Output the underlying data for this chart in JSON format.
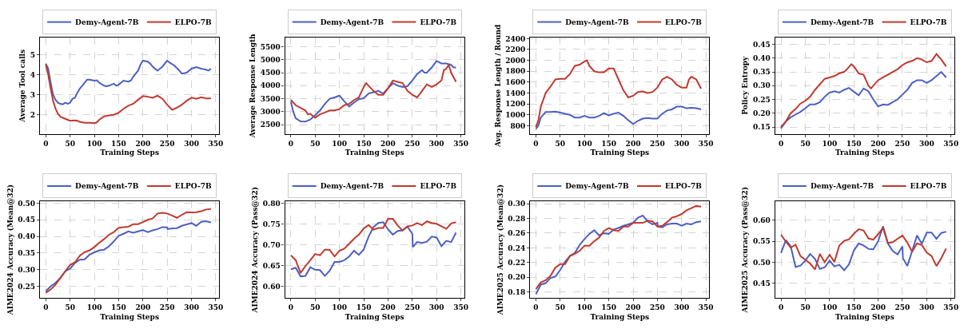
{
  "chart_data": [
    {
      "type": "line",
      "xlabel": "Training Steps",
      "ylabel": "Average Tool calls",
      "xlim": [
        -12,
        357
      ],
      "xticks": [
        0,
        50,
        100,
        150,
        200,
        250,
        300,
        350
      ],
      "ylim": [
        1.05,
        5.85
      ],
      "yticks": [
        2,
        3,
        4,
        5
      ],
      "grid": true,
      "legend": "top",
      "series": [
        {
          "name": "Demy-Agent-7B",
          "color": "#4c5fc4",
          "x": [
            0,
            5,
            10,
            15,
            20,
            25,
            30,
            35,
            40,
            45,
            50,
            55,
            60,
            65,
            70,
            80,
            85,
            90,
            100,
            105,
            110,
            120,
            125,
            130,
            140,
            145,
            150,
            160,
            170,
            175,
            180,
            190,
            195,
            200,
            210,
            215,
            220,
            230,
            240,
            250,
            255,
            265,
            275,
            280,
            290,
            300,
            310,
            320,
            330,
            335,
            340
          ],
          "values": [
            4.55,
            4.3,
            3.6,
            3.0,
            2.75,
            2.6,
            2.55,
            2.52,
            2.6,
            2.55,
            2.6,
            2.8,
            2.85,
            3.1,
            3.3,
            3.6,
            3.75,
            3.75,
            3.7,
            3.72,
            3.6,
            3.45,
            3.42,
            3.45,
            3.55,
            3.45,
            3.5,
            3.7,
            3.65,
            3.7,
            3.9,
            4.2,
            4.5,
            4.7,
            4.65,
            4.55,
            4.4,
            4.2,
            4.4,
            4.7,
            4.6,
            4.45,
            4.2,
            4.05,
            4.1,
            4.3,
            4.38,
            4.3,
            4.25,
            4.2,
            4.3
          ]
        },
        {
          "name": "ELPO-7B",
          "color": "#c0392f",
          "x": [
            0,
            5,
            10,
            15,
            20,
            25,
            30,
            40,
            50,
            60,
            65,
            70,
            80,
            90,
            100,
            105,
            110,
            120,
            130,
            140,
            150,
            160,
            170,
            180,
            190,
            200,
            210,
            220,
            230,
            240,
            250,
            260,
            270,
            280,
            290,
            300,
            310,
            320,
            330,
            340
          ],
          "values": [
            4.5,
            4.0,
            3.3,
            2.7,
            2.3,
            2.05,
            1.9,
            1.8,
            1.7,
            1.72,
            1.7,
            1.65,
            1.6,
            1.6,
            1.58,
            1.62,
            1.75,
            1.92,
            1.97,
            2.0,
            2.1,
            2.3,
            2.45,
            2.55,
            2.75,
            2.93,
            2.9,
            2.85,
            2.95,
            2.8,
            2.5,
            2.25,
            2.35,
            2.5,
            2.7,
            2.85,
            2.8,
            2.87,
            2.82,
            2.82
          ]
        }
      ]
    },
    {
      "type": "line",
      "xlabel": "Training Steps",
      "ylabel": "Average Response Length",
      "xlim": [
        -12,
        357
      ],
      "xticks": [
        0,
        50,
        100,
        150,
        200,
        250,
        300,
        350
      ],
      "ylim": [
        2150,
        5850
      ],
      "yticks": [
        2500,
        3000,
        3500,
        4000,
        4500,
        5000,
        5500
      ],
      "grid": true,
      "legend": "top",
      "series": [
        {
          "name": "Demy-Agent-7B",
          "color": "#4c5fc4",
          "x": [
            0,
            5,
            10,
            20,
            30,
            40,
            50,
            60,
            70,
            80,
            90,
            100,
            110,
            120,
            130,
            140,
            150,
            160,
            170,
            180,
            190,
            200,
            210,
            220,
            230,
            240,
            250,
            260,
            270,
            275,
            280,
            290,
            300,
            310,
            320,
            330,
            335,
            340
          ],
          "values": [
            3380,
            3000,
            2750,
            2630,
            2620,
            2700,
            2870,
            3050,
            3300,
            3500,
            3550,
            3620,
            3400,
            3200,
            3350,
            3480,
            3520,
            3700,
            3750,
            3800,
            3700,
            3900,
            4100,
            4000,
            3950,
            3980,
            4200,
            4450,
            4600,
            4500,
            4500,
            4700,
            4950,
            4850,
            4850,
            4800,
            4700,
            4700
          ]
        },
        {
          "name": "ELPO-7B",
          "color": "#c0392f",
          "x": [
            0,
            10,
            20,
            30,
            35,
            40,
            50,
            60,
            70,
            80,
            90,
            100,
            110,
            120,
            130,
            140,
            150,
            155,
            160,
            170,
            180,
            190,
            200,
            210,
            220,
            230,
            240,
            250,
            260,
            270,
            280,
            290,
            300,
            310,
            315,
            320,
            325,
            330,
            340
          ],
          "values": [
            3450,
            3250,
            3150,
            3050,
            2900,
            2920,
            2770,
            2900,
            2970,
            3050,
            3050,
            3100,
            3250,
            3300,
            3450,
            3550,
            3950,
            4100,
            4000,
            3800,
            3650,
            3650,
            3900,
            4200,
            4150,
            4100,
            3800,
            3650,
            3550,
            3800,
            4050,
            3950,
            4050,
            4200,
            4600,
            4650,
            4800,
            4500,
            4150
          ]
        }
      ]
    },
    {
      "type": "line",
      "xlabel": "Training Steps",
      "ylabel": "Avg. Response Length / Round",
      "xlim": [
        -12,
        357
      ],
      "xticks": [
        0,
        50,
        100,
        150,
        200,
        250,
        300,
        350
      ],
      "ylim": [
        650,
        2420
      ],
      "yticks": [
        800,
        1000,
        1200,
        1400,
        1600,
        1800,
        2000,
        2200,
        2400
      ],
      "grid": true,
      "legend": "top",
      "series": [
        {
          "name": "Demy-Agent-7B",
          "color": "#4c5fc4",
          "x": [
            0,
            5,
            10,
            20,
            30,
            40,
            50,
            60,
            70,
            80,
            90,
            100,
            110,
            120,
            130,
            140,
            150,
            160,
            170,
            180,
            190,
            200,
            210,
            220,
            230,
            240,
            250,
            260,
            270,
            280,
            290,
            300,
            310,
            320,
            330,
            340
          ],
          "values": [
            740,
            800,
            950,
            1050,
            1050,
            1060,
            1040,
            1020,
            1000,
            950,
            950,
            980,
            950,
            950,
            980,
            1030,
            990,
            1020,
            1040,
            980,
            900,
            830,
            890,
            930,
            940,
            930,
            930,
            1020,
            1080,
            1100,
            1150,
            1150,
            1120,
            1130,
            1120,
            1100
          ]
        },
        {
          "name": "ELPO-7B",
          "color": "#c0392f",
          "x": [
            0,
            5,
            10,
            20,
            30,
            40,
            50,
            60,
            70,
            80,
            90,
            100,
            105,
            110,
            120,
            130,
            140,
            150,
            160,
            170,
            180,
            190,
            200,
            210,
            220,
            230,
            240,
            250,
            260,
            270,
            280,
            290,
            300,
            310,
            315,
            320,
            330,
            340
          ],
          "values": [
            770,
            900,
            1150,
            1400,
            1520,
            1650,
            1660,
            1660,
            1750,
            1900,
            1920,
            1980,
            2000,
            1900,
            1800,
            1780,
            1780,
            1850,
            1850,
            1650,
            1450,
            1320,
            1350,
            1420,
            1430,
            1400,
            1420,
            1500,
            1650,
            1700,
            1650,
            1550,
            1500,
            1500,
            1650,
            1700,
            1650,
            1480
          ]
        }
      ]
    },
    {
      "type": "line",
      "xlabel": "Training Steps",
      "ylabel": "Policy Entropy",
      "xlim": [
        -12,
        357
      ],
      "xticks": [
        0,
        50,
        100,
        150,
        200,
        250,
        300,
        350
      ],
      "ylim": [
        0.125,
        0.475
      ],
      "yticks": [
        0.15,
        {
          "value": 0.2,
          "label": "0.20"
        },
        0.25,
        {
          "value": 0.3,
          "label": "0.30"
        },
        0.35,
        {
          "value": 0.4,
          "label": "0.40"
        },
        0.45
      ],
      "grid": true,
      "legend": "top",
      "series": [
        {
          "name": "Demy-Agent-7B",
          "color": "#4c5fc4",
          "x": [
            0,
            10,
            20,
            30,
            40,
            50,
            60,
            70,
            80,
            90,
            100,
            110,
            120,
            130,
            140,
            150,
            160,
            170,
            180,
            190,
            200,
            210,
            220,
            230,
            240,
            250,
            260,
            270,
            280,
            290,
            300,
            310,
            320,
            330,
            340
          ],
          "values": [
            0.145,
            0.17,
            0.185,
            0.195,
            0.205,
            0.218,
            0.232,
            0.232,
            0.24,
            0.26,
            0.275,
            0.28,
            0.275,
            0.285,
            0.292,
            0.278,
            0.265,
            0.29,
            0.28,
            0.25,
            0.225,
            0.232,
            0.23,
            0.24,
            0.25,
            0.268,
            0.285,
            0.31,
            0.32,
            0.32,
            0.31,
            0.32,
            0.335,
            0.35,
            0.33
          ]
        },
        {
          "name": "ELPO-7B",
          "color": "#c0392f",
          "x": [
            0,
            10,
            20,
            30,
            40,
            50,
            60,
            70,
            80,
            90,
            100,
            110,
            120,
            130,
            140,
            145,
            150,
            160,
            170,
            180,
            185,
            190,
            200,
            210,
            220,
            230,
            240,
            250,
            260,
            270,
            280,
            290,
            300,
            310,
            320,
            330,
            340
          ],
          "values": [
            0.15,
            0.17,
            0.2,
            0.215,
            0.235,
            0.245,
            0.26,
            0.285,
            0.305,
            0.325,
            0.33,
            0.335,
            0.345,
            0.35,
            0.368,
            0.378,
            0.37,
            0.345,
            0.34,
            0.3,
            0.29,
            0.3,
            0.32,
            0.33,
            0.34,
            0.35,
            0.36,
            0.375,
            0.385,
            0.39,
            0.4,
            0.395,
            0.385,
            0.39,
            0.415,
            0.395,
            0.37
          ]
        }
      ]
    },
    {
      "type": "line",
      "xlabel": "Training Steps",
      "ylabel": "AIME2024 Accuracy (Mean@32)",
      "xlim": [
        -12,
        357
      ],
      "xticks": [
        0,
        50,
        100,
        150,
        200,
        250,
        300,
        350
      ],
      "ylim": [
        0.215,
        0.505
      ],
      "yticks": [
        {
          "value": 0.25,
          "label": "0.25"
        },
        {
          "value": 0.3,
          "label": "0.30"
        },
        {
          "value": 0.35,
          "label": "0.35"
        },
        {
          "value": 0.4,
          "label": "0.40"
        },
        {
          "value": 0.45,
          "label": "0.45"
        },
        {
          "value": 0.5,
          "label": "0.50"
        }
      ],
      "grid": true,
      "legend": "top",
      "series": [
        {
          "name": "Demy-Agent-7B",
          "color": "#4c5fc4",
          "x": [
            0,
            10,
            20,
            30,
            40,
            50,
            60,
            70,
            80,
            90,
            100,
            110,
            120,
            130,
            140,
            150,
            160,
            170,
            180,
            190,
            200,
            210,
            220,
            230,
            240,
            250,
            251,
            260,
            270,
            280,
            290,
            300,
            310,
            320,
            330,
            340
          ],
          "values": [
            0.235,
            0.25,
            0.26,
            0.275,
            0.295,
            0.303,
            0.32,
            0.33,
            0.331,
            0.345,
            0.352,
            0.358,
            0.36,
            0.37,
            0.385,
            0.402,
            0.408,
            0.415,
            0.411,
            0.415,
            0.419,
            0.413,
            0.418,
            0.422,
            0.428,
            0.427,
            0.422,
            0.424,
            0.425,
            0.432,
            0.436,
            0.44,
            0.432,
            0.444,
            0.446,
            0.442
          ]
        },
        {
          "name": "ELPO-7B",
          "color": "#c0392f",
          "x": [
            0,
            10,
            20,
            30,
            40,
            50,
            60,
            70,
            80,
            90,
            100,
            110,
            120,
            130,
            140,
            150,
            160,
            170,
            180,
            190,
            200,
            210,
            220,
            230,
            240,
            250,
            260,
            270,
            280,
            290,
            300,
            310,
            320,
            330,
            340
          ],
          "values": [
            0.23,
            0.24,
            0.255,
            0.275,
            0.295,
            0.314,
            0.322,
            0.342,
            0.353,
            0.358,
            0.368,
            0.381,
            0.392,
            0.405,
            0.413,
            0.426,
            0.428,
            0.429,
            0.437,
            0.437,
            0.443,
            0.45,
            0.454,
            0.469,
            0.471,
            0.469,
            0.463,
            0.456,
            0.465,
            0.473,
            0.472,
            0.473,
            0.476,
            0.481,
            0.483
          ]
        }
      ]
    },
    {
      "type": "line",
      "xlabel": "Training Steps",
      "ylabel": "AIME2024 Accuracy (Pass@32)",
      "xlim": [
        -12,
        357
      ],
      "xticks": [
        0,
        50,
        100,
        150,
        200,
        250,
        300,
        350
      ],
      "ylim": [
        0.572,
        0.805
      ],
      "yticks": [
        {
          "value": 0.6,
          "label": "0.60"
        },
        0.65,
        {
          "value": 0.7,
          "label": "0.70"
        },
        0.75,
        {
          "value": 0.8,
          "label": "0.80"
        }
      ],
      "grid": true,
      "legend": "top",
      "series": [
        {
          "name": "Demy-Agent-7B",
          "color": "#4c5fc4",
          "x": [
            0,
            10,
            20,
            30,
            40,
            50,
            60,
            70,
            80,
            90,
            100,
            110,
            120,
            130,
            140,
            150,
            160,
            170,
            180,
            190,
            200,
            210,
            220,
            230,
            240,
            250,
            251,
            260,
            270,
            280,
            290,
            300,
            310,
            320,
            330,
            340
          ],
          "values": [
            0.641,
            0.645,
            0.624,
            0.625,
            0.646,
            0.64,
            0.639,
            0.625,
            0.638,
            0.659,
            0.659,
            0.663,
            0.672,
            0.686,
            0.676,
            0.689,
            0.72,
            0.743,
            0.753,
            0.755,
            0.738,
            0.725,
            0.734,
            0.735,
            0.744,
            0.727,
            0.695,
            0.707,
            0.705,
            0.708,
            0.72,
            0.718,
            0.697,
            0.71,
            0.707,
            0.73
          ]
        },
        {
          "name": "ELPO-7B",
          "color": "#c0392f",
          "x": [
            0,
            10,
            20,
            30,
            40,
            50,
            60,
            70,
            80,
            90,
            100,
            110,
            120,
            130,
            140,
            150,
            160,
            170,
            180,
            190,
            200,
            210,
            220,
            230,
            240,
            250,
            260,
            270,
            280,
            290,
            300,
            310,
            320,
            330,
            340
          ],
          "values": [
            0.675,
            0.663,
            0.632,
            0.649,
            0.663,
            0.678,
            0.675,
            0.689,
            0.688,
            0.672,
            0.686,
            0.691,
            0.703,
            0.715,
            0.725,
            0.74,
            0.748,
            0.737,
            0.741,
            0.741,
            0.763,
            0.763,
            0.747,
            0.735,
            0.745,
            0.747,
            0.753,
            0.748,
            0.757,
            0.753,
            0.751,
            0.745,
            0.739,
            0.752,
            0.755
          ]
        }
      ]
    },
    {
      "type": "line",
      "xlabel": "Training Steps",
      "ylabel": "AIME2025 Accuracy (Mean@32)",
      "xlim": [
        -12,
        357
      ],
      "xticks": [
        0,
        50,
        100,
        150,
        200,
        250,
        300,
        350
      ],
      "ylim": [
        0.172,
        0.303
      ],
      "yticks": [
        0.18,
        {
          "value": 0.2,
          "label": "0.20"
        },
        0.22,
        0.24,
        0.26,
        0.28,
        {
          "value": 0.3,
          "label": "0.30"
        }
      ],
      "grid": true,
      "legend": "top",
      "series": [
        {
          "name": "Demy-Agent-7B",
          "color": "#4c5fc4",
          "x": [
            0,
            10,
            20,
            30,
            40,
            50,
            60,
            70,
            80,
            90,
            100,
            110,
            120,
            130,
            140,
            150,
            160,
            170,
            180,
            190,
            200,
            210,
            220,
            230,
            240,
            250,
            251,
            260,
            270,
            280,
            290,
            300,
            310,
            320,
            330,
            340
          ],
          "values": [
            0.177,
            0.19,
            0.192,
            0.199,
            0.201,
            0.21,
            0.221,
            0.229,
            0.233,
            0.244,
            0.252,
            0.259,
            0.264,
            0.257,
            0.26,
            0.259,
            0.265,
            0.267,
            0.27,
            0.272,
            0.274,
            0.281,
            0.284,
            0.276,
            0.272,
            0.274,
            0.269,
            0.268,
            0.272,
            0.273,
            0.273,
            0.27,
            0.273,
            0.272,
            0.275,
            0.276
          ]
        },
        {
          "name": "ELPO-7B",
          "color": "#c0392f",
          "x": [
            0,
            10,
            20,
            30,
            40,
            50,
            60,
            70,
            80,
            90,
            100,
            110,
            120,
            130,
            140,
            150,
            160,
            170,
            180,
            190,
            200,
            210,
            220,
            230,
            240,
            250,
            260,
            270,
            280,
            290,
            300,
            310,
            320,
            330,
            340
          ],
          "values": [
            0.184,
            0.193,
            0.196,
            0.202,
            0.213,
            0.218,
            0.218,
            0.229,
            0.232,
            0.236,
            0.243,
            0.243,
            0.249,
            0.254,
            0.263,
            0.267,
            0.264,
            0.263,
            0.269,
            0.269,
            0.274,
            0.274,
            0.274,
            0.277,
            0.276,
            0.269,
            0.27,
            0.275,
            0.281,
            0.283,
            0.286,
            0.291,
            0.294,
            0.297,
            0.296
          ]
        }
      ]
    },
    {
      "type": "line",
      "xlabel": "Training Steps",
      "ylabel": "AIME2025 Accuracy (Pass@32)",
      "xlim": [
        -12,
        357
      ],
      "xticks": [
        0,
        50,
        100,
        150,
        200,
        250,
        300,
        350
      ],
      "ylim": [
        0.415,
        0.645
      ],
      "yticks": [
        0.45,
        {
          "value": 0.5,
          "label": "0.50"
        },
        0.55,
        {
          "value": 0.6,
          "label": "0.60"
        }
      ],
      "grid": true,
      "legend": "top",
      "series": [
        {
          "name": "Demy-Agent-7B",
          "color": "#4c5fc4",
          "x": [
            0,
            10,
            20,
            30,
            40,
            50,
            60,
            70,
            80,
            90,
            100,
            110,
            120,
            130,
            140,
            150,
            160,
            170,
            180,
            190,
            200,
            210,
            220,
            230,
            240,
            250,
            251,
            260,
            270,
            280,
            290,
            300,
            310,
            320,
            330,
            340
          ],
          "values": [
            0.522,
            0.553,
            0.538,
            0.489,
            0.492,
            0.504,
            0.52,
            0.508,
            0.484,
            0.488,
            0.504,
            0.49,
            0.494,
            0.481,
            0.495,
            0.528,
            0.545,
            0.54,
            0.532,
            0.531,
            0.55,
            0.586,
            0.545,
            0.527,
            0.519,
            0.538,
            0.51,
            0.491,
            0.527,
            0.564,
            0.544,
            0.571,
            0.571,
            0.556,
            0.57,
            0.573
          ]
        },
        {
          "name": "ELPO-7B",
          "color": "#c0392f",
          "x": [
            0,
            10,
            20,
            30,
            40,
            50,
            60,
            70,
            80,
            90,
            100,
            110,
            120,
            130,
            140,
            150,
            160,
            170,
            180,
            190,
            200,
            210,
            220,
            230,
            240,
            250,
            260,
            270,
            280,
            290,
            300,
            310,
            320,
            330,
            340
          ],
          "values": [
            0.566,
            0.549,
            0.535,
            0.542,
            0.515,
            0.506,
            0.497,
            0.483,
            0.52,
            0.5,
            0.518,
            0.501,
            0.54,
            0.551,
            0.555,
            0.568,
            0.579,
            0.576,
            0.557,
            0.554,
            0.567,
            0.582,
            0.546,
            0.548,
            0.556,
            0.564,
            0.547,
            0.525,
            0.545,
            0.541,
            0.523,
            0.515,
            0.491,
            0.51,
            0.533
          ]
        }
      ]
    }
  ]
}
